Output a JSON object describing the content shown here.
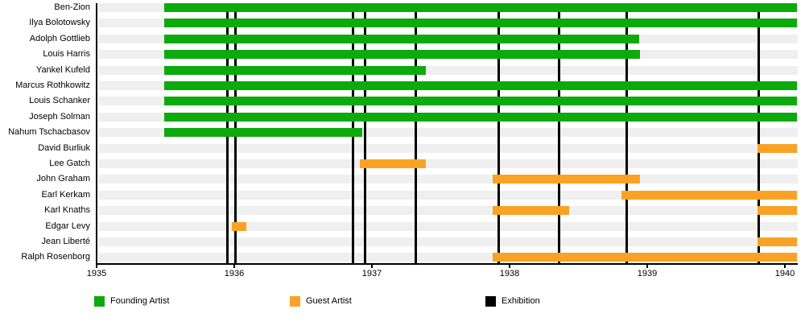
{
  "chart_data": {
    "type": "gantt-timeline",
    "title": "",
    "x_axis": {
      "tick_labels": [
        "1935",
        "1936",
        "1937",
        "1938",
        "1939",
        "1940"
      ],
      "tick_values": [
        1935,
        1936,
        1937,
        1938,
        1939,
        1940
      ],
      "range": [
        1935,
        1940.09
      ],
      "grid": false
    },
    "rows": [
      {
        "label": "Ben-Zion",
        "role": "founding",
        "bars": [
          {
            "start": 1935.49,
            "end": 1940.09
          }
        ]
      },
      {
        "label": "Ilya Bolotowsky",
        "role": "founding",
        "bars": [
          {
            "start": 1935.49,
            "end": 1940.09
          }
        ]
      },
      {
        "label": "Adolph Gottlieb",
        "role": "founding",
        "bars": [
          {
            "start": 1935.49,
            "end": 1938.94
          }
        ]
      },
      {
        "label": "Louis Harris",
        "role": "founding",
        "bars": [
          {
            "start": 1935.49,
            "end": 1938.95
          }
        ]
      },
      {
        "label": "Yankel Kufeld",
        "role": "founding",
        "bars": [
          {
            "start": 1935.49,
            "end": 1937.39
          }
        ]
      },
      {
        "label": "Marcus Rothkowitz",
        "role": "founding",
        "bars": [
          {
            "start": 1935.49,
            "end": 1940.09
          }
        ]
      },
      {
        "label": "Louis Schanker",
        "role": "founding",
        "bars": [
          {
            "start": 1935.49,
            "end": 1940.09
          }
        ]
      },
      {
        "label": "Joseph Solman",
        "role": "founding",
        "bars": [
          {
            "start": 1935.49,
            "end": 1940.09
          }
        ]
      },
      {
        "label": "Nahum Tschacbasov",
        "role": "founding",
        "bars": [
          {
            "start": 1935.49,
            "end": 1936.93
          }
        ]
      },
      {
        "label": "David Burliuk",
        "role": "guest",
        "bars": [
          {
            "start": 1939.8,
            "end": 1940.09
          }
        ]
      },
      {
        "label": "Lee Gatch",
        "role": "guest",
        "bars": [
          {
            "start": 1936.91,
            "end": 1937.39
          }
        ]
      },
      {
        "label": "John Graham",
        "role": "guest",
        "bars": [
          {
            "start": 1937.88,
            "end": 1938.95
          }
        ]
      },
      {
        "label": "Earl Kerkam",
        "role": "guest",
        "bars": [
          {
            "start": 1938.81,
            "end": 1940.09
          }
        ]
      },
      {
        "label": "Karl Knaths",
        "role": "guest",
        "bars": [
          {
            "start": 1937.88,
            "end": 1938.43
          },
          {
            "start": 1939.8,
            "end": 1940.09
          }
        ]
      },
      {
        "label": "Edgar Levy",
        "role": "guest",
        "bars": [
          {
            "start": 1935.98,
            "end": 1936.09
          }
        ]
      },
      {
        "label": "Jean Liberté",
        "role": "guest",
        "bars": [
          {
            "start": 1939.8,
            "end": 1940.09
          }
        ]
      },
      {
        "label": "Ralph Rosenborg",
        "role": "guest",
        "bars": [
          {
            "start": 1937.88,
            "end": 1940.09
          }
        ]
      }
    ],
    "exhibitions": [
      1935.95,
      1936.01,
      1936.86,
      1936.95,
      1937.32,
      1937.92,
      1938.36,
      1938.85,
      1939.81
    ],
    "colors": {
      "founding": "#0daa0d",
      "guest": "#faa226",
      "exhibition": "#000000",
      "row_band": "#efefef",
      "axis": "#000000"
    },
    "legend_position": "bottom"
  },
  "legend": {
    "founding": {
      "label": "Founding Artist"
    },
    "guest": {
      "label": "Guest Artist"
    },
    "exhibition": {
      "label": "Exhibition"
    }
  }
}
